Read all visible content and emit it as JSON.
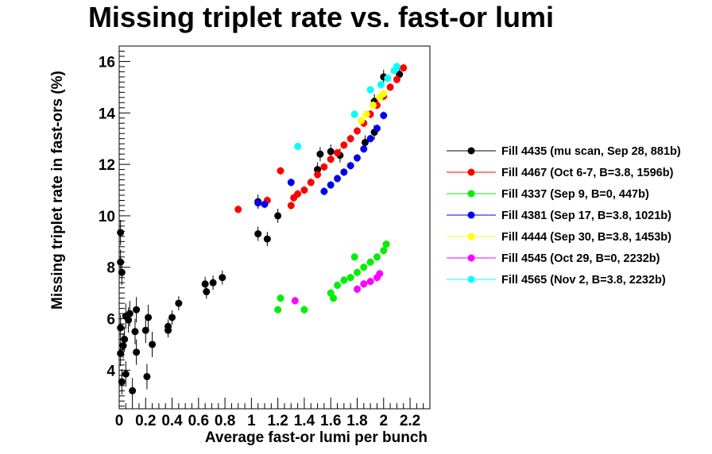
{
  "chart_data": {
    "type": "scatter",
    "title": "Missing triplet rate vs. fast-or lumi",
    "xlabel": "Average fast-or lumi per bunch",
    "ylabel": "Missing triplet rate in fast-ors (%)",
    "xlim": [
      0,
      2.35
    ],
    "ylim": [
      2.5,
      16.6
    ],
    "x_ticks": [
      0,
      0.2,
      0.4,
      0.6,
      0.8,
      1,
      1.2,
      1.4,
      1.6,
      1.8,
      2,
      2.2
    ],
    "x_tick_labels": [
      "0",
      "0.2",
      "0.4",
      "0.6",
      "0.8",
      "1",
      "1.2",
      "1.4",
      "1.6",
      "1.8",
      "2",
      "2.2"
    ],
    "y_ticks": [
      4,
      6,
      8,
      10,
      12,
      14,
      16
    ],
    "y_tick_labels": [
      "4",
      "6",
      "8",
      "10",
      "12",
      "14",
      "16"
    ],
    "grid": false,
    "legend_position": "right",
    "series": [
      {
        "name": "Fill 4435 (mu scan, Sep 28, 881b)",
        "color": "#000000",
        "points": [
          [
            0.01,
            9.35
          ],
          [
            0.01,
            8.2
          ],
          [
            0.02,
            7.8
          ],
          [
            0.01,
            5.65
          ],
          [
            0.01,
            4.65
          ],
          [
            0.02,
            3.55
          ],
          [
            0.03,
            4.95
          ],
          [
            0.04,
            5.2
          ],
          [
            0.05,
            3.85
          ],
          [
            0.05,
            6.1
          ],
          [
            0.07,
            5.95
          ],
          [
            0.08,
            6.2
          ],
          [
            0.1,
            3.2
          ],
          [
            0.12,
            5.5
          ],
          [
            0.13,
            6.35
          ],
          [
            0.13,
            4.7
          ],
          [
            0.2,
            5.55
          ],
          [
            0.21,
            3.75
          ],
          [
            0.22,
            6.05
          ],
          [
            0.25,
            5.0
          ],
          [
            0.37,
            5.55
          ],
          [
            0.37,
            5.7
          ],
          [
            0.4,
            6.05
          ],
          [
            0.45,
            6.6
          ],
          [
            0.65,
            7.35
          ],
          [
            0.66,
            7.05
          ],
          [
            0.71,
            7.4
          ],
          [
            0.78,
            7.6
          ],
          [
            1.05,
            10.55
          ],
          [
            1.05,
            9.3
          ],
          [
            1.12,
            9.1
          ],
          [
            1.2,
            10.0
          ],
          [
            1.5,
            11.8
          ],
          [
            1.52,
            12.4
          ],
          [
            1.6,
            12.5
          ],
          [
            1.67,
            12.35
          ],
          [
            1.86,
            12.85
          ],
          [
            1.93,
            13.25
          ],
          [
            1.93,
            14.45
          ],
          [
            2.0,
            15.4
          ],
          [
            2.12,
            15.5
          ]
        ]
      },
      {
        "name": "Fill 4467 (Oct 6-7, B=3.8, 1596b)",
        "color": "#ff0000",
        "points": [
          [
            0.9,
            10.25
          ],
          [
            1.12,
            10.6
          ],
          [
            1.22,
            11.75
          ],
          [
            1.3,
            10.4
          ],
          [
            1.32,
            10.7
          ],
          [
            1.35,
            10.85
          ],
          [
            1.4,
            11.0
          ],
          [
            1.45,
            11.3
          ],
          [
            1.5,
            11.6
          ],
          [
            1.55,
            11.9
          ],
          [
            1.6,
            12.2
          ],
          [
            1.65,
            12.45
          ],
          [
            1.7,
            12.75
          ],
          [
            1.75,
            13.0
          ],
          [
            1.8,
            13.3
          ],
          [
            1.85,
            13.6
          ],
          [
            1.9,
            13.95
          ],
          [
            1.95,
            14.3
          ],
          [
            2.0,
            14.65
          ],
          [
            2.05,
            15.0
          ],
          [
            2.1,
            15.3
          ],
          [
            2.15,
            15.75
          ]
        ]
      },
      {
        "name": "Fill 4337 (Sep 9, B=0, 447b)",
        "color": "#00ee00",
        "points": [
          [
            1.2,
            6.35
          ],
          [
            1.22,
            6.8
          ],
          [
            1.4,
            6.35
          ],
          [
            1.6,
            7.0
          ],
          [
            1.62,
            6.8
          ],
          [
            1.65,
            7.3
          ],
          [
            1.7,
            7.5
          ],
          [
            1.75,
            7.6
          ],
          [
            1.78,
            8.4
          ],
          [
            1.8,
            7.8
          ],
          [
            1.85,
            8.0
          ],
          [
            1.9,
            8.2
          ],
          [
            1.95,
            8.4
          ],
          [
            2.0,
            8.65
          ],
          [
            2.02,
            8.9
          ]
        ]
      },
      {
        "name": "Fill 4381 (Sep 17, B=3.8, 1021b)",
        "color": "#0000ee",
        "points": [
          [
            1.05,
            10.5
          ],
          [
            1.1,
            10.45
          ],
          [
            1.3,
            11.3
          ],
          [
            1.55,
            10.95
          ],
          [
            1.6,
            11.2
          ],
          [
            1.65,
            11.45
          ],
          [
            1.7,
            11.7
          ],
          [
            1.75,
            11.95
          ],
          [
            1.8,
            12.25
          ],
          [
            1.85,
            12.6
          ],
          [
            1.9,
            13.0
          ],
          [
            1.95,
            13.4
          ],
          [
            2.0,
            13.9
          ]
        ]
      },
      {
        "name": "Fill 4444 (Sep 30, B=3.8, 1453b)",
        "color": "#ffff00",
        "points": [
          [
            1.83,
            13.7
          ],
          [
            1.87,
            13.95
          ],
          [
            1.92,
            14.3
          ],
          [
            1.97,
            14.6
          ],
          [
            2.0,
            14.75
          ]
        ]
      },
      {
        "name": "Fill 4545 (Oct 29, B=0, 2232b)",
        "color": "#ff00ff",
        "points": [
          [
            1.33,
            6.7
          ],
          [
            1.8,
            7.15
          ],
          [
            1.85,
            7.35
          ],
          [
            1.9,
            7.45
          ],
          [
            1.95,
            7.6
          ],
          [
            1.97,
            7.75
          ]
        ]
      },
      {
        "name": "Fill 4565 (Nov 2, B=3.8, 2232b)",
        "color": "#00ffff",
        "points": [
          [
            1.35,
            12.7
          ],
          [
            1.78,
            13.95
          ],
          [
            1.9,
            14.9
          ],
          [
            1.98,
            15.1
          ],
          [
            2.03,
            15.35
          ],
          [
            2.08,
            15.65
          ],
          [
            2.1,
            15.8
          ]
        ]
      }
    ]
  }
}
